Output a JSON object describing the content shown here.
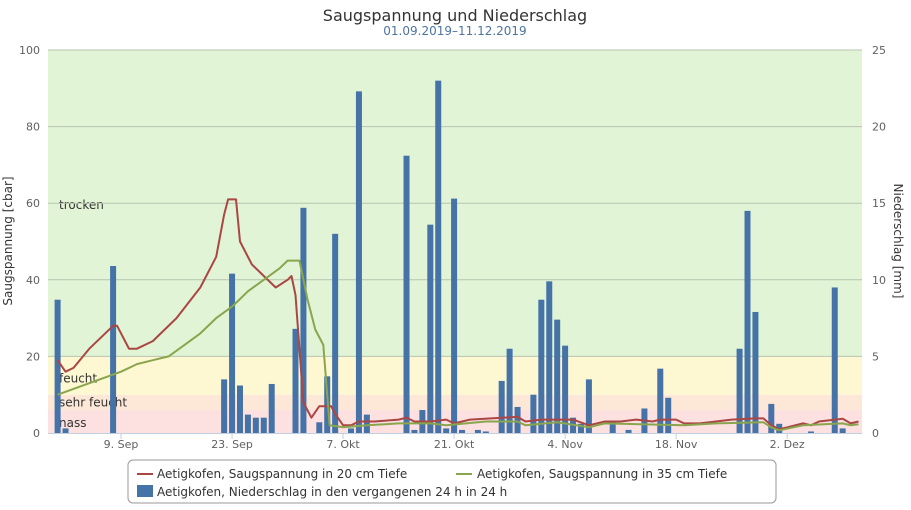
{
  "chart_data": {
    "type": "bar+line",
    "title": "Saugspannung und Niederschlag",
    "subtitle": "01.09.2019–11.12.2019",
    "ylabel_left": "Saugspannung [cbar]",
    "ylabel_right": "Niederschlag [mm]",
    "ylim_left": [
      0,
      100
    ],
    "ylim_right": [
      0,
      25
    ],
    "yticks_left": [
      "0",
      "20",
      "40",
      "60",
      "80",
      "100"
    ],
    "yticks_right": [
      "0",
      "5",
      "10",
      "15",
      "20",
      "25"
    ],
    "x_unit": "day index (1 = 01.09.2019)",
    "xlim": [
      0,
      102.4
    ],
    "xticks": [
      {
        "day": 9,
        "label": "9. Sep"
      },
      {
        "day": 23,
        "label": "23. Sep"
      },
      {
        "day": 37,
        "label": "7. Okt"
      },
      {
        "day": 51,
        "label": "21. Okt"
      },
      {
        "day": 65,
        "label": "4. Nov"
      },
      {
        "day": 79,
        "label": "18. Nov"
      },
      {
        "day": 93,
        "label": "2. Dez"
      }
    ],
    "grid": true,
    "bands": [
      {
        "label": "nass",
        "from": 0,
        "to": 6,
        "color": "#fde0e0"
      },
      {
        "label": "sehr feucht",
        "from": 6,
        "to": 10,
        "color": "#fde8d8"
      },
      {
        "label": "feucht",
        "from": 10,
        "to": 20,
        "color": "#fdf8d2"
      },
      {
        "label": "trocken",
        "from": 20,
        "to": 100,
        "color": "#e2f4d6"
      }
    ],
    "series": [
      {
        "name": "Aetigkofen, Saugspannung in 20 cm Tiefe",
        "type": "line",
        "axis": "left",
        "color": "#aa4643",
        "points": [
          [
            1,
            19
          ],
          [
            2,
            16
          ],
          [
            3,
            17
          ],
          [
            5,
            22
          ],
          [
            8,
            28
          ],
          [
            8.5,
            28
          ],
          [
            10,
            22
          ],
          [
            11,
            22
          ],
          [
            13,
            24
          ],
          [
            16,
            30
          ],
          [
            19,
            38
          ],
          [
            21,
            46
          ],
          [
            22,
            57
          ],
          [
            22.5,
            61
          ],
          [
            23.5,
            61
          ],
          [
            24,
            50
          ],
          [
            25.5,
            44
          ],
          [
            27,
            41
          ],
          [
            28.5,
            38
          ],
          [
            30,
            40
          ],
          [
            30.5,
            41
          ],
          [
            31,
            36
          ],
          [
            32,
            8
          ],
          [
            33,
            4
          ],
          [
            34,
            7
          ],
          [
            35.5,
            7
          ],
          [
            36,
            5
          ],
          [
            37,
            2
          ],
          [
            38,
            2
          ],
          [
            39,
            3
          ],
          [
            41,
            3
          ],
          [
            44,
            3.5
          ],
          [
            45,
            4
          ],
          [
            46,
            3
          ],
          [
            48,
            3
          ],
          [
            50,
            3.5
          ],
          [
            51,
            2.5
          ],
          [
            53,
            3.5
          ],
          [
            57,
            4
          ],
          [
            59,
            4.2
          ],
          [
            60,
            3
          ],
          [
            62,
            3.5
          ],
          [
            66,
            3.5
          ],
          [
            68,
            2
          ],
          [
            70,
            3
          ],
          [
            72,
            3
          ],
          [
            74,
            3.5
          ],
          [
            76,
            3
          ],
          [
            77,
            3.5
          ],
          [
            79,
            3.5
          ],
          [
            80,
            2.5
          ],
          [
            82,
            2.5
          ],
          [
            84,
            3
          ],
          [
            86,
            3.5
          ],
          [
            89,
            3.8
          ],
          [
            90,
            3.8
          ],
          [
            91,
            2
          ],
          [
            92,
            1
          ],
          [
            93,
            1.5
          ],
          [
            95,
            2.5
          ],
          [
            96,
            2
          ],
          [
            97,
            3
          ],
          [
            100,
            3.7
          ],
          [
            101,
            2.5
          ],
          [
            102,
            3
          ]
        ]
      },
      {
        "name": "Aetigkofen, Saugspannung in 35 cm Tiefe",
        "type": "line",
        "axis": "left",
        "color": "#89a54e",
        "points": [
          [
            1,
            10
          ],
          [
            5,
            13
          ],
          [
            9,
            16
          ],
          [
            11,
            18
          ],
          [
            13,
            19
          ],
          [
            15,
            20
          ],
          [
            17,
            23
          ],
          [
            19,
            26
          ],
          [
            21,
            30
          ],
          [
            23,
            33
          ],
          [
            24,
            35
          ],
          [
            25,
            37
          ],
          [
            27,
            40
          ],
          [
            29,
            43
          ],
          [
            30,
            45
          ],
          [
            31.5,
            45
          ],
          [
            32.5,
            35
          ],
          [
            33.5,
            27
          ],
          [
            34.5,
            23
          ],
          [
            35.3,
            2
          ],
          [
            37,
            1.5
          ],
          [
            40,
            2
          ],
          [
            44,
            2.5
          ],
          [
            48,
            2.5
          ],
          [
            50,
            2
          ],
          [
            55,
            3
          ],
          [
            59,
            3
          ],
          [
            60,
            2
          ],
          [
            64,
            2.8
          ],
          [
            68,
            1.5
          ],
          [
            70,
            2.5
          ],
          [
            80,
            2
          ],
          [
            84,
            2.5
          ],
          [
            90,
            2.8
          ],
          [
            91,
            1.5
          ],
          [
            92,
            0.7
          ],
          [
            95,
            2
          ],
          [
            100,
            2.5
          ],
          [
            101,
            2
          ],
          [
            102,
            2.3
          ]
        ]
      },
      {
        "name": "Aetigkofen, Niederschlag in den vergangenen 24 h in 24 h",
        "type": "bar",
        "axis": "right",
        "color": "#4572a7",
        "points": [
          [
            1,
            8.7
          ],
          [
            2,
            0.3
          ],
          [
            8,
            10.9
          ],
          [
            22,
            3.5
          ],
          [
            23,
            10.4
          ],
          [
            24,
            3.1
          ],
          [
            25,
            1.2
          ],
          [
            26,
            1.0
          ],
          [
            27,
            1.0
          ],
          [
            28,
            3.2
          ],
          [
            31,
            6.8
          ],
          [
            32,
            14.7
          ],
          [
            34,
            0.7
          ],
          [
            35,
            3.7
          ],
          [
            36,
            13.0
          ],
          [
            38,
            0.3
          ],
          [
            39,
            22.3
          ],
          [
            40,
            1.2
          ],
          [
            45,
            18.1
          ],
          [
            46,
            0.2
          ],
          [
            47,
            1.5
          ],
          [
            48,
            13.6
          ],
          [
            49,
            23.0
          ],
          [
            50,
            0.3
          ],
          [
            51,
            15.3
          ],
          [
            52,
            0.2
          ],
          [
            54,
            0.2
          ],
          [
            55,
            0.1
          ],
          [
            57,
            3.4
          ],
          [
            58,
            5.5
          ],
          [
            59,
            1.7
          ],
          [
            61,
            2.5
          ],
          [
            62,
            8.7
          ],
          [
            63,
            9.9
          ],
          [
            64,
            7.4
          ],
          [
            65,
            5.7
          ],
          [
            66,
            1.0
          ],
          [
            67,
            0.6
          ],
          [
            68,
            3.5
          ],
          [
            71,
            0.8
          ],
          [
            73,
            0.2
          ],
          [
            75,
            1.6
          ],
          [
            77,
            4.2
          ],
          [
            78,
            2.3
          ],
          [
            87,
            5.5
          ],
          [
            88,
            14.5
          ],
          [
            89,
            7.9
          ],
          [
            91,
            1.9
          ],
          [
            92,
            0.6
          ],
          [
            96,
            0.1
          ],
          [
            99,
            9.5
          ],
          [
            100,
            0.3
          ]
        ]
      }
    ],
    "legend_position": "bottom"
  }
}
